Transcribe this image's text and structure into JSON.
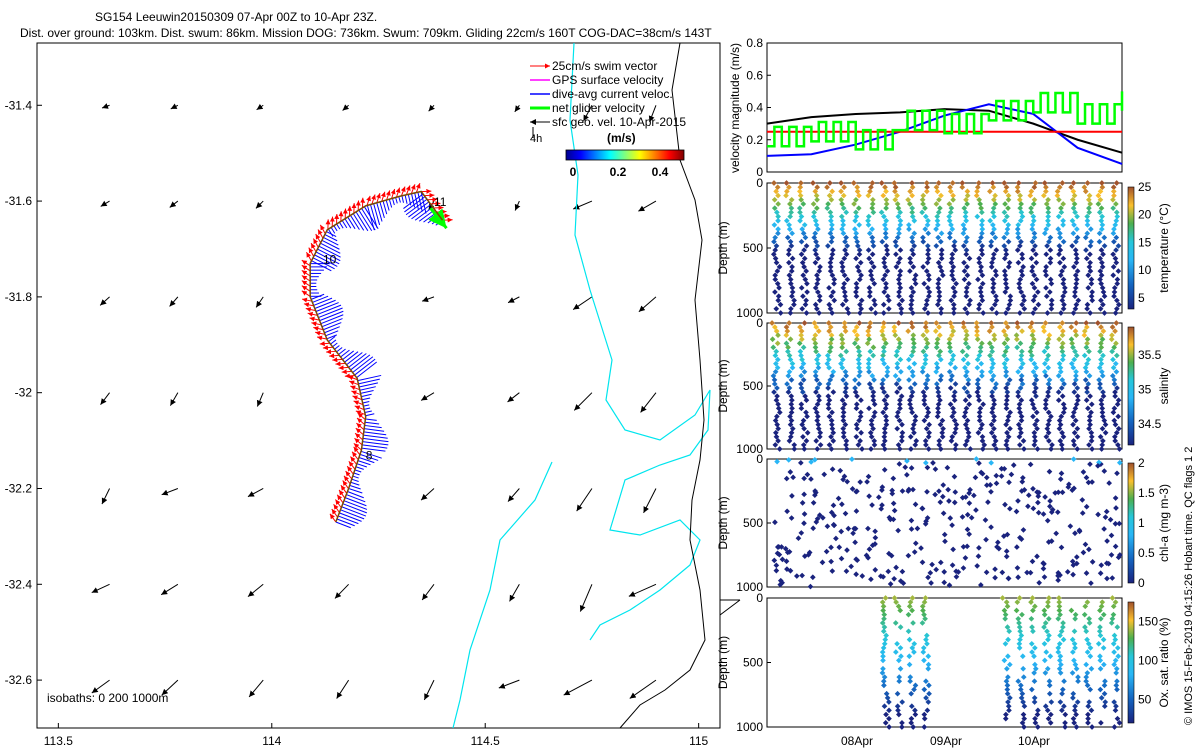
{
  "header": {
    "line1": "SG154 Leeuwin20150309 07-Apr 00Z to 10-Apr 23Z.",
    "line2": "Dist. over ground: 103km. Dist. swum: 86km. Mission DOG: 736km. Swum: 709km. Gliding 22cm/s 160T COG-DAC=38cm/s 143T"
  },
  "copyright": "© IMOS 15-Feb-2019 04:15:26 Hobart time. QC flags 1  2",
  "colors": {
    "swim_vector": "#ff0000",
    "gps_velocity": "#ff00ff",
    "dac": "#0000ff",
    "net_velocity": "#00ff00",
    "geo_velocity": "#000000",
    "isobath": "#00e5ee",
    "isobath_deep": "#000000"
  },
  "chart_data": [
    {
      "type": "map",
      "name": "track-map",
      "xlim": [
        113.45,
        115.05
      ],
      "ylim": [
        -32.7,
        -31.27
      ],
      "xticks": [
        113.5,
        114,
        114.5,
        115
      ],
      "xtick_labels": [
        "113.5",
        "114",
        "114.5",
        "115"
      ],
      "yticks": [
        -31.4,
        -31.6,
        -31.8,
        -32,
        -32.2,
        -32.4,
        -32.6
      ],
      "ytick_labels": [
        "-31.4",
        "-31.6",
        "-31.8",
        "-32",
        "-32.2",
        "-32.4",
        "-32.6"
      ],
      "legend": {
        "entries": [
          {
            "label": "25cm/s swim vector",
            "color": "#ff0000"
          },
          {
            "label": "GPS surface velocity",
            "color": "#ff00ff"
          },
          {
            "label": "dive-avg current veloc.",
            "color": "#0000ff"
          },
          {
            "label": "net glider velocity",
            "color": "#00ff00"
          },
          {
            "label": "sfc geo. vel. 10-Apr-2015",
            "color": "#000000"
          }
        ],
        "extra_label": "4h",
        "placement": "top-right"
      },
      "colorbar": {
        "title": "(m/s)",
        "range": [
          0,
          0.5
        ],
        "ticks": [
          0,
          0.2,
          0.4
        ],
        "tick_labels": [
          "0",
          "0.2",
          "0.4"
        ]
      },
      "track": [
        {
          "lon": 114.15,
          "lat": -32.27
        },
        {
          "lon": 114.18,
          "lat": -32.2
        },
        {
          "lon": 114.21,
          "lat": -32.12
        },
        {
          "lon": 114.22,
          "lat": -32.05
        },
        {
          "lon": 114.2,
          "lat": -31.97
        },
        {
          "lon": 114.13,
          "lat": -31.89
        },
        {
          "lon": 114.09,
          "lat": -31.8
        },
        {
          "lon": 114.09,
          "lat": -31.73
        },
        {
          "lon": 114.13,
          "lat": -31.66
        },
        {
          "lon": 114.22,
          "lat": -31.61
        },
        {
          "lon": 114.3,
          "lat": -31.59
        },
        {
          "lon": 114.35,
          "lat": -31.58
        },
        {
          "lon": 114.4,
          "lat": -31.64
        }
      ],
      "day_labels": [
        {
          "text": "8",
          "lon": 114.22,
          "lat": -32.14
        },
        {
          "text": "10",
          "lon": 114.12,
          "lat": -31.73
        },
        {
          "text": "11",
          "lon": 114.38,
          "lat": -31.61
        }
      ],
      "isobath_label": "isobaths: 0   200  1000m"
    },
    {
      "type": "line",
      "name": "velocity-panel",
      "ylabel": "velocity magnitude (m/s)",
      "ylim": [
        0,
        0.8
      ],
      "yticks": [
        0,
        0.2,
        0.4,
        0.6,
        0.8
      ],
      "ytick_labels": [
        "0",
        "0.2",
        "0.4",
        "0.6",
        "0.8"
      ],
      "x": [
        0,
        0.5,
        1,
        1.5,
        2,
        2.5,
        3,
        3.5,
        4
      ],
      "series": [
        {
          "color": "#000000",
          "values": [
            0.3,
            0.34,
            0.36,
            0.37,
            0.39,
            0.38,
            0.3,
            0.2,
            0.12
          ]
        },
        {
          "color": "#0000ff",
          "values": [
            0.1,
            0.11,
            0.17,
            0.25,
            0.35,
            0.42,
            0.36,
            0.15,
            0.05
          ]
        },
        {
          "color": "#ff0000",
          "values": [
            0.25,
            0.25,
            0.25,
            0.25,
            0.25,
            0.25,
            0.25,
            0.25,
            0.25
          ]
        },
        {
          "color": "#00ff00",
          "values": [
            0.22,
            0.25,
            0.2,
            0.32,
            0.3,
            0.38,
            0.43,
            0.36,
            0.44
          ]
        }
      ]
    },
    {
      "type": "scatter",
      "name": "temperature-panel",
      "ylabel": "Depth (m)",
      "ylim": [
        1000,
        0
      ],
      "yticks": [
        0,
        500,
        1000
      ],
      "ytick_labels": [
        "0",
        "500",
        "1000"
      ],
      "colorbar": {
        "label": "temperature (°C)",
        "range": [
          3,
          25
        ],
        "ticks": [
          5,
          10,
          15,
          20,
          25
        ],
        "tick_labels": [
          "5",
          "10",
          "15",
          "20",
          "25"
        ]
      }
    },
    {
      "type": "scatter",
      "name": "salinity-panel",
      "ylabel": "Depth (m)",
      "ylim": [
        1000,
        0
      ],
      "yticks": [
        0,
        500,
        1000
      ],
      "ytick_labels": [
        "0",
        "500",
        "1000"
      ],
      "colorbar": {
        "label": "salinity",
        "range": [
          34.2,
          35.9
        ],
        "ticks": [
          34.5,
          35,
          35.5
        ],
        "tick_labels": [
          "34.5",
          "35",
          "35.5"
        ]
      }
    },
    {
      "type": "scatter",
      "name": "chla-panel",
      "ylabel": "Depth (m)",
      "ylim": [
        1000,
        0
      ],
      "yticks": [
        0,
        500,
        1000
      ],
      "ytick_labels": [
        "0",
        "500",
        "1000"
      ],
      "colorbar": {
        "label": "chl-a (mg m-3)",
        "range": [
          0,
          2
        ],
        "ticks": [
          0,
          0.5,
          1,
          1.5,
          2
        ],
        "tick_labels": [
          "0",
          "0.5",
          "1",
          "1.5",
          "2"
        ]
      }
    },
    {
      "type": "scatter",
      "name": "oxygen-panel",
      "ylabel": "Depth (m)",
      "ylim": [
        1000,
        0
      ],
      "yticks": [
        0,
        500,
        1000
      ],
      "ytick_labels": [
        "0",
        "500",
        "1000"
      ],
      "xticks": [
        "08Apr",
        "09Apr",
        "10Apr"
      ],
      "colorbar": {
        "label": "Ox. sat. ratio (%)",
        "range": [
          20,
          175
        ],
        "ticks": [
          50,
          100,
          150
        ],
        "tick_labels": [
          "50",
          "100",
          "150"
        ]
      }
    }
  ]
}
